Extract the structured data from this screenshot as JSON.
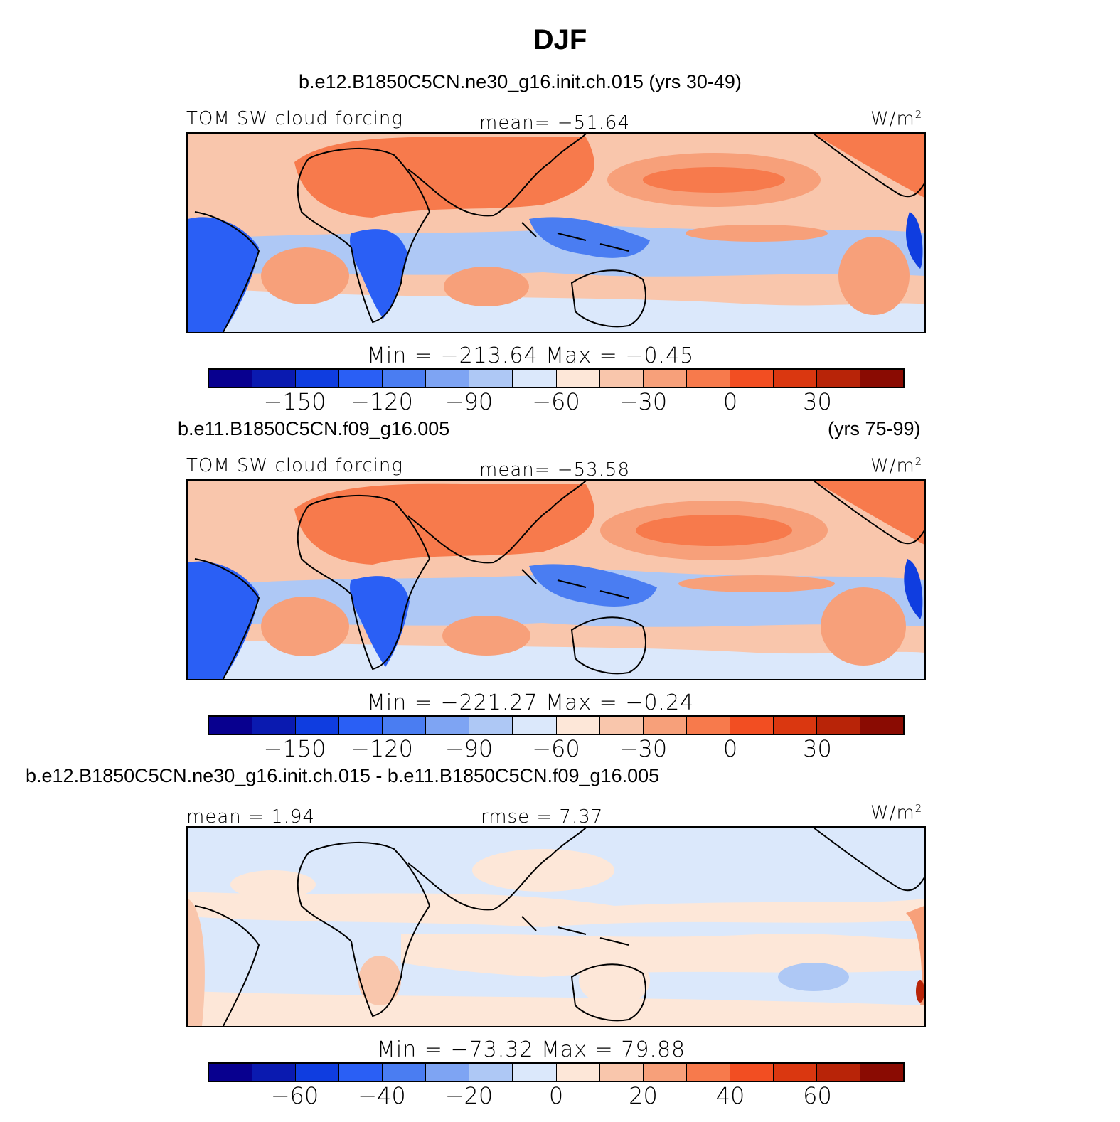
{
  "title": "DJF",
  "palette": [
    "#08008f",
    "#0a1ab0",
    "#0f3de0",
    "#2a5ff5",
    "#4a7df2",
    "#7ea4f3",
    "#aec8f5",
    "#dbe8fb",
    "#fde7d8",
    "#f9c6ac",
    "#f7a07a",
    "#f77a4c",
    "#f24e22",
    "#da3710",
    "#b82408",
    "#8a0b02"
  ],
  "land_color": "#dbe8fb",
  "panels": [
    {
      "case": "b.e12.B1850C5CN.ne30_g16.init.ch.015 (yrs 30-49)",
      "case_right": "",
      "left_label": "TOM SW cloud forcing",
      "center_label": "mean= −51.64",
      "units": "W/m",
      "units_sup": "2",
      "stats": "Min = −213.64 Max = −0.45",
      "ticks": [
        "−150",
        "−120",
        "−90",
        "−60",
        "−30",
        "0",
        "30"
      ]
    },
    {
      "case": "b.e11.B1850C5CN.f09_g16.005",
      "case_right": "(yrs 75-99)",
      "left_label": "TOM SW cloud forcing",
      "center_label": "mean= −53.58",
      "units": "W/m",
      "units_sup": "2",
      "stats": "Min = −221.27 Max = −0.24",
      "ticks": [
        "−150",
        "−120",
        "−90",
        "−60",
        "−30",
        "0",
        "30"
      ]
    },
    {
      "case": "b.e12.B1850C5CN.ne30_g16.init.ch.015 - b.e11.B1850C5CN.f09_g16.005",
      "case_right": "",
      "left_label": "mean =   1.94",
      "center_label": "rmse =   7.37",
      "units": "W/m",
      "units_sup": "2",
      "stats": "Min = −73.32 Max =  79.88",
      "ticks": [
        "−60",
        "−40",
        "−20",
        "0",
        "20",
        "40",
        "60"
      ]
    }
  ]
}
